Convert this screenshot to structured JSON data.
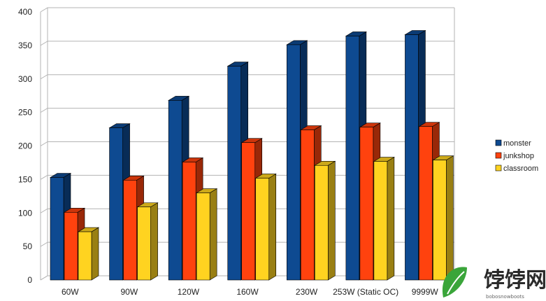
{
  "chart_data": {
    "type": "bar",
    "style": "3d-clustered",
    "categories": [
      "60W",
      "90W",
      "120W",
      "160W",
      "230W",
      "253W (Static OC)",
      "9999W"
    ],
    "series": [
      {
        "name": "monster",
        "color": "#0e4a91",
        "values": [
          153,
          227,
          268,
          319,
          351,
          364,
          366
        ]
      },
      {
        "name": "junkshop",
        "color": "#ff420e",
        "values": [
          101,
          149,
          176,
          205,
          224,
          228,
          229
        ]
      },
      {
        "name": "classroom",
        "color": "#ffd320",
        "values": [
          72,
          109,
          130,
          152,
          171,
          177,
          179
        ]
      }
    ],
    "ylim": [
      0,
      400
    ],
    "yticks": [
      0,
      50,
      100,
      150,
      200,
      250,
      300,
      350,
      400
    ],
    "grid": true,
    "legend_position": "right"
  },
  "watermark": {
    "title": "饽饽网",
    "subtitle": "bobosnowboots",
    "icon": "leaf-icon",
    "color": "#3aa53a"
  }
}
